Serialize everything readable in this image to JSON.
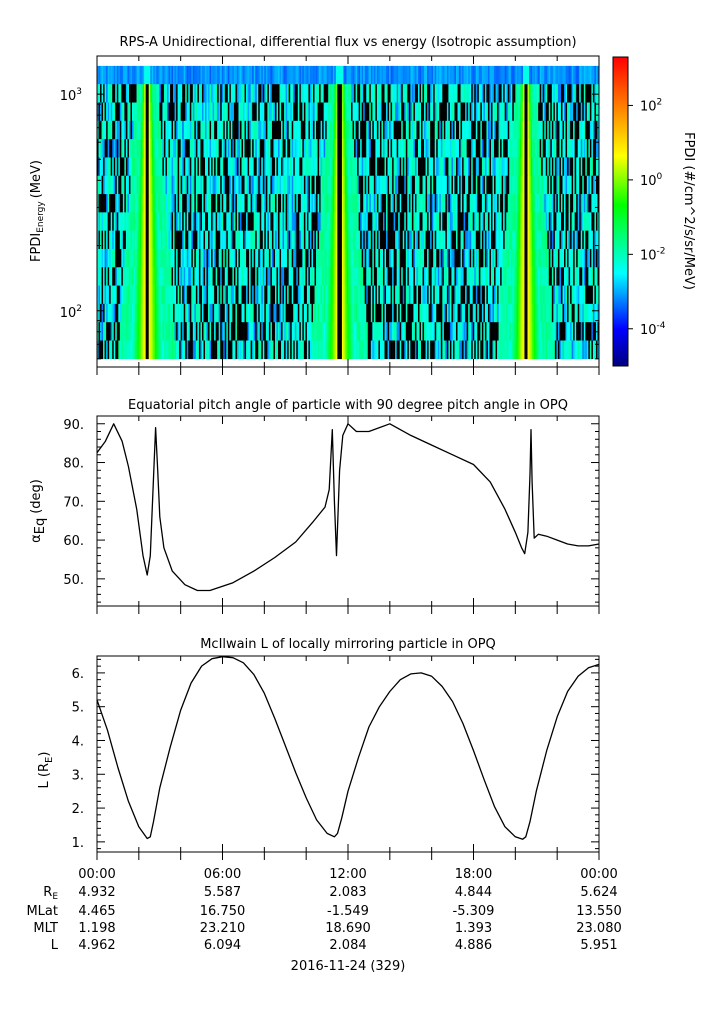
{
  "chart_data": [
    {
      "type": "heatmap",
      "title": "RPS-A Unidirectional, differential flux vs energy (Isotropic assumption)",
      "ylabel_main": "FPDI",
      "ylabel_sub": "Energy",
      "ylabel_unit": "(MeV)",
      "y_scale": "log",
      "ylim": [
        55,
        1500
      ],
      "y_ticks": [
        {
          "value": 100,
          "base": "10",
          "exp": "2"
        },
        {
          "value": 1000,
          "base": "10",
          "exp": "3"
        }
      ],
      "xlim_hours": [
        0,
        24
      ],
      "colorbar": {
        "label": "FPDI (#/cm^2/s/sr/MeV)",
        "scale": "log",
        "range": [
          1e-05,
          2000
        ],
        "ticks": [
          {
            "value": 0.0001,
            "base": "10",
            "exp": "-4"
          },
          {
            "value": 0.01,
            "base": "10",
            "exp": "-2"
          },
          {
            "value": 1,
            "base": "10",
            "exp": "0"
          },
          {
            "value": 100,
            "base": "10",
            "exp": "2"
          }
        ]
      },
      "high_flux_centers_hours": [
        2.4,
        11.6,
        20.5
      ],
      "colorscale": "rainbow"
    },
    {
      "type": "line",
      "title": "Equatorial pitch angle of particle with 90 degree pitch angle in OPQ",
      "ylabel_main": "α",
      "ylabel_sub": "Eq",
      "ylabel_unit": "(deg)",
      "ylim": [
        43,
        92
      ],
      "y_ticks": [
        "50.",
        "60.",
        "70.",
        "80.",
        "90."
      ],
      "x_hours": [
        0,
        0.4,
        0.8,
        1.2,
        1.5,
        1.9,
        2.2,
        2.4,
        2.55,
        2.7,
        2.8,
        2.9,
        3.0,
        3.2,
        3.6,
        4.2,
        4.8,
        5.4,
        6.5,
        7.5,
        8.5,
        9.5,
        10.3,
        10.9,
        11.1,
        11.25,
        11.35,
        11.45,
        11.6,
        11.75,
        12.0,
        12.4,
        13.0,
        14.0,
        15.0,
        16.0,
        17.0,
        18.0,
        18.8,
        19.5,
        20.0,
        20.3,
        20.45,
        20.6,
        20.7,
        20.75,
        20.8,
        20.9,
        21.1,
        21.5,
        22.0,
        22.5,
        23.0,
        23.5,
        24.0
      ],
      "y_values": [
        82.5,
        85.5,
        90.0,
        85.5,
        79.0,
        68.0,
        56.0,
        51.0,
        56.0,
        76.0,
        89.0,
        78.0,
        66.0,
        58.0,
        52.0,
        48.5,
        47.0,
        47.0,
        49.0,
        52.0,
        55.5,
        59.5,
        64.5,
        68.5,
        73.0,
        88.5,
        70.0,
        56.0,
        78.0,
        87.0,
        90.0,
        88.0,
        88.0,
        90.0,
        87.0,
        84.5,
        82.0,
        79.5,
        75.0,
        68.0,
        62.0,
        58.0,
        56.5,
        62.0,
        77.0,
        88.5,
        75.0,
        60.5,
        61.5,
        61.0,
        60.0,
        59.0,
        58.5,
        58.5,
        59.0
      ]
    },
    {
      "type": "line",
      "title": "McIlwain L of locally mirroring particle in OPQ",
      "ylabel_main": "L (R",
      "ylabel_sub": "E",
      "ylabel_unit": ")",
      "ylim": [
        0.7,
        6.5
      ],
      "y_ticks": [
        "1.",
        "2.",
        "3.",
        "4.",
        "5.",
        "6."
      ],
      "x_hours": [
        0,
        0.5,
        1.0,
        1.5,
        2.0,
        2.4,
        2.55,
        2.7,
        3.0,
        3.5,
        4.0,
        4.5,
        5.0,
        5.5,
        6.0,
        6.5,
        7.0,
        7.5,
        8.0,
        8.5,
        9.0,
        9.5,
        10.0,
        10.5,
        11.0,
        11.35,
        11.5,
        11.7,
        12.0,
        12.5,
        13.0,
        13.5,
        14.0,
        14.5,
        15.0,
        15.5,
        16.0,
        16.5,
        17.0,
        17.5,
        18.0,
        18.5,
        19.0,
        19.5,
        20.0,
        20.35,
        20.5,
        20.7,
        21.0,
        21.5,
        22.0,
        22.5,
        23.0,
        23.5,
        24.0
      ],
      "y_values": [
        5.2,
        4.3,
        3.2,
        2.2,
        1.45,
        1.1,
        1.15,
        1.6,
        2.6,
        3.8,
        4.9,
        5.7,
        6.2,
        6.42,
        6.48,
        6.45,
        6.3,
        5.95,
        5.4,
        4.65,
        3.85,
        3.05,
        2.3,
        1.65,
        1.25,
        1.15,
        1.25,
        1.7,
        2.5,
        3.5,
        4.4,
        5.0,
        5.45,
        5.8,
        5.97,
        6.0,
        5.9,
        5.6,
        5.15,
        4.5,
        3.7,
        2.85,
        2.05,
        1.45,
        1.15,
        1.08,
        1.15,
        1.6,
        2.5,
        3.7,
        4.7,
        5.45,
        5.9,
        6.15,
        6.25
      ]
    }
  ],
  "x_axis": {
    "tick_labels": [
      "00:00",
      "06:00",
      "12:00",
      "18:00",
      "00:00"
    ],
    "row_labels": [
      "R",
      "MLat",
      "MLT",
      "L"
    ],
    "row_label_r_sub": "E",
    "rows": [
      [
        "4.932",
        "5.587",
        "2.083",
        "4.844",
        "5.624"
      ],
      [
        "4.465",
        "16.750",
        "-1.549",
        "-5.309",
        "13.550"
      ],
      [
        "1.198",
        "23.210",
        "18.690",
        "1.393",
        "23.080"
      ],
      [
        "4.962",
        "6.094",
        "2.084",
        "4.886",
        "5.951"
      ]
    ],
    "date_label": "2016-11-24 (329)"
  }
}
